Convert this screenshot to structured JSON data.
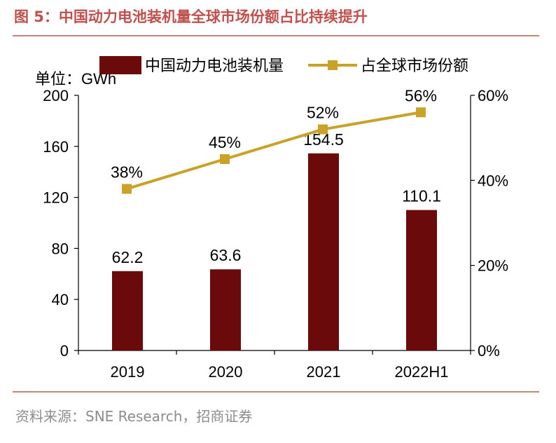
{
  "figure": {
    "title": "图 5：中国动力电池装机量全球市场份额占比持续提升",
    "source": "资料来源：SNE Research，招商证券"
  },
  "colors": {
    "bar": "#6b0a0a",
    "line": "#c9a227",
    "title": "#c0504d",
    "rule": "#c9856f",
    "axis": "#000000"
  },
  "chart_data": {
    "type": "bar+line",
    "unit_label": "单位：GWh",
    "categories": [
      "2019",
      "2020",
      "2021",
      "2022H1"
    ],
    "series": [
      {
        "name": "中国动力电池装机量",
        "type": "bar",
        "axis": "left",
        "values": [
          62.2,
          63.6,
          154.5,
          110.1
        ],
        "labels": [
          "62.2",
          "63.6",
          "154.5",
          "110.1"
        ]
      },
      {
        "name": "占全球市场份额",
        "type": "line",
        "axis": "right",
        "values": [
          38,
          45,
          52,
          56
        ],
        "labels": [
          "38%",
          "45%",
          "52%",
          "56%"
        ]
      }
    ],
    "y_left": {
      "min": 0,
      "max": 200,
      "ticks": [
        "0",
        "40",
        "80",
        "120",
        "160",
        "200"
      ]
    },
    "y_right": {
      "min": 0,
      "max": 60,
      "ticks": [
        "0%",
        "20%",
        "40%",
        "60%"
      ]
    },
    "legend_position": "top"
  }
}
